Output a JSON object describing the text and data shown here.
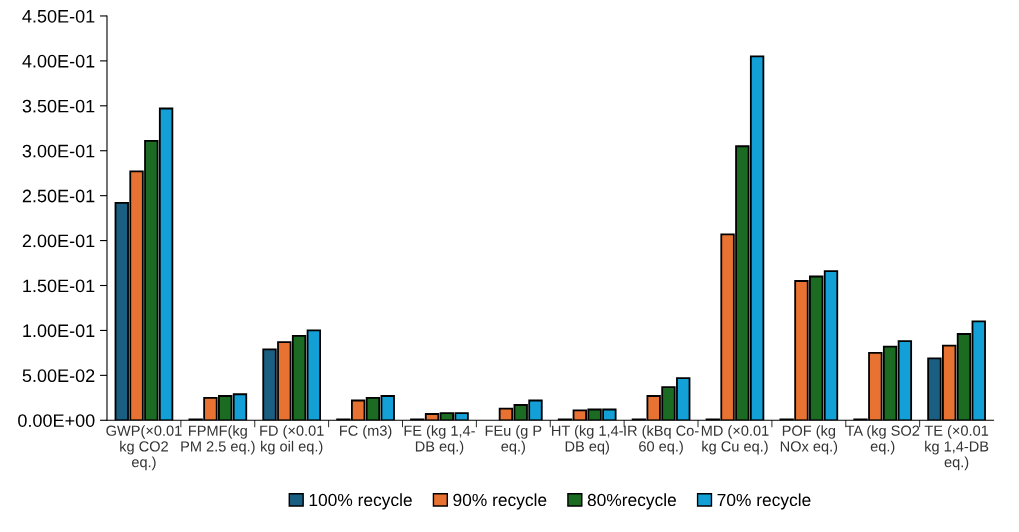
{
  "chart_data": {
    "type": "bar",
    "categories": [
      "GWP(×0.01\nkg CO2\neq.)",
      "FPMF(kg\nPM 2.5 eq.)",
      "FD (×0.01\nkg oil eq.)",
      "FC (m3)",
      "FE (kg 1,4-\nDB eq.)",
      "FEu (g P\neq.)",
      "HT (kg 1,4-\nDB eq)",
      "IR (kBq Co-\n60 eq.)",
      "MD (×0.01\nkg Cu eq.)",
      "POF (kg\nNOx eq.)",
      "TA (kg SO2\neq.)",
      "TE (×0.01\nkg 1,4-DB\neq.)"
    ],
    "series": [
      {
        "name": "100% recycle",
        "color": "#1a5e82",
        "values": [
          0.242,
          0.001,
          0.079,
          0.001,
          0.001,
          null,
          0.001,
          0.001,
          0.001,
          0.001,
          0.001,
          0.069
        ]
      },
      {
        "name": "90% recycle",
        "color": "#e87232",
        "values": [
          0.277,
          0.025,
          0.087,
          0.022,
          0.007,
          0.013,
          0.011,
          0.027,
          0.207,
          0.155,
          0.075,
          0.083
        ]
      },
      {
        "name": "80%recycle",
        "color": "#1b6b23",
        "values": [
          0.311,
          0.027,
          0.094,
          0.025,
          0.008,
          0.017,
          0.012,
          0.037,
          0.305,
          0.16,
          0.082,
          0.096
        ]
      },
      {
        "name": "70% recycle",
        "color": "#12a0d7",
        "values": [
          0.347,
          0.029,
          0.1,
          0.027,
          0.008,
          0.022,
          0.012,
          0.047,
          0.405,
          0.166,
          0.088,
          0.11
        ]
      }
    ],
    "ylim": [
      0,
      0.45
    ],
    "yticks": [
      {
        "value": 0,
        "label": "0.00E+00"
      },
      {
        "value": 0.05,
        "label": "5.00E-02"
      },
      {
        "value": 0.1,
        "label": "1.00E-01"
      },
      {
        "value": 0.15,
        "label": "1.50E-01"
      },
      {
        "value": 0.2,
        "label": "2.00E-01"
      },
      {
        "value": 0.25,
        "label": "2.50E-01"
      },
      {
        "value": 0.3,
        "label": "3.00E-01"
      },
      {
        "value": 0.35,
        "label": "3.50E-01"
      },
      {
        "value": 0.4,
        "label": "4.00E-01"
      },
      {
        "value": 0.45,
        "label": "4.50E-01"
      }
    ],
    "grid": false,
    "legend": "bottom"
  }
}
